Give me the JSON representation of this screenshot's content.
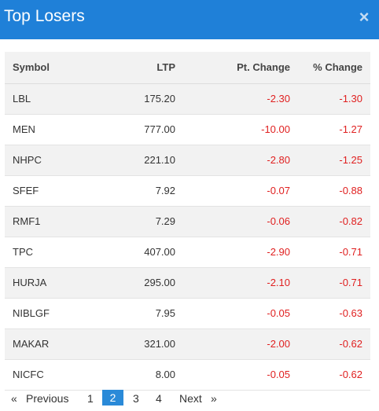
{
  "modal": {
    "title": "Top Losers",
    "close_icon": "×"
  },
  "table": {
    "headers": {
      "symbol": "Symbol",
      "ltp": "LTP",
      "pt_change": "Pt. Change",
      "pct_change": "% Change"
    },
    "rows": [
      {
        "symbol": "LBL",
        "ltp": "175.20",
        "pt_change": "-2.30",
        "pct_change": "-1.30"
      },
      {
        "symbol": "MEN",
        "ltp": "777.00",
        "pt_change": "-10.00",
        "pct_change": "-1.27"
      },
      {
        "symbol": "NHPC",
        "ltp": "221.10",
        "pt_change": "-2.80",
        "pct_change": "-1.25"
      },
      {
        "symbol": "SFEF",
        "ltp": "7.92",
        "pt_change": "-0.07",
        "pct_change": "-0.88"
      },
      {
        "symbol": "RMF1",
        "ltp": "7.29",
        "pt_change": "-0.06",
        "pct_change": "-0.82"
      },
      {
        "symbol": "TPC",
        "ltp": "407.00",
        "pt_change": "-2.90",
        "pct_change": "-0.71"
      },
      {
        "symbol": "HURJA",
        "ltp": "295.00",
        "pt_change": "-2.10",
        "pct_change": "-0.71"
      },
      {
        "symbol": "NIBLGF",
        "ltp": "7.95",
        "pt_change": "-0.05",
        "pct_change": "-0.63"
      },
      {
        "symbol": "MAKAR",
        "ltp": "321.00",
        "pt_change": "-2.00",
        "pct_change": "-0.62"
      },
      {
        "symbol": "NICFC",
        "ltp": "8.00",
        "pt_change": "-0.05",
        "pct_change": "-0.62"
      }
    ]
  },
  "pagination": {
    "first_arrow": "«",
    "previous": "Previous",
    "pages": [
      "1",
      "2",
      "3",
      "4"
    ],
    "active_page": "2",
    "next": "Next",
    "last_arrow": "»"
  },
  "colors": {
    "header_bg": "#1f80d8",
    "negative": "#e02020",
    "active_page_bg": "#2a8ad8"
  }
}
